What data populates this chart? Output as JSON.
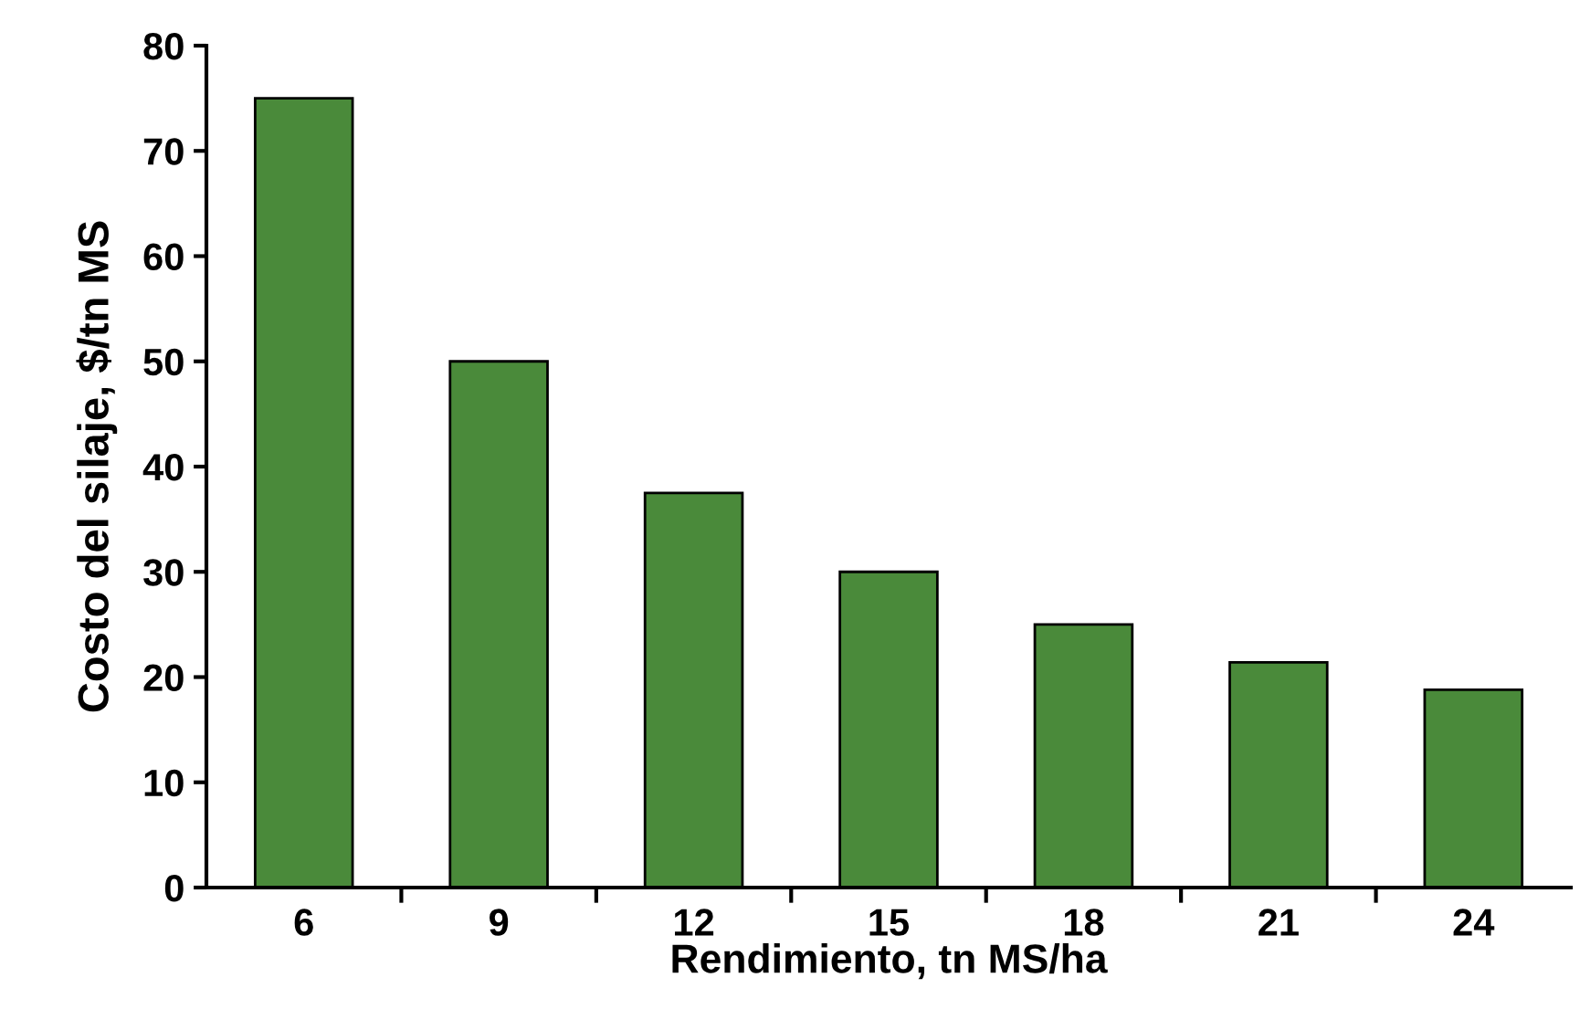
{
  "chart_data": {
    "type": "bar",
    "xlabel": "Rendimiento, tn MS/ha",
    "ylabel": "Costo del silaje, $/tn MS",
    "categories": [
      "6",
      "9",
      "12",
      "15",
      "18",
      "21",
      "24"
    ],
    "values": [
      75,
      50,
      37.5,
      30,
      25,
      21.4,
      18.8
    ],
    "color": "#4a8a3a",
    "ylim": [
      0,
      80
    ],
    "yticks": [
      0,
      10,
      20,
      30,
      40,
      50,
      60,
      70,
      80
    ],
    "grid": false,
    "legend": false
  }
}
